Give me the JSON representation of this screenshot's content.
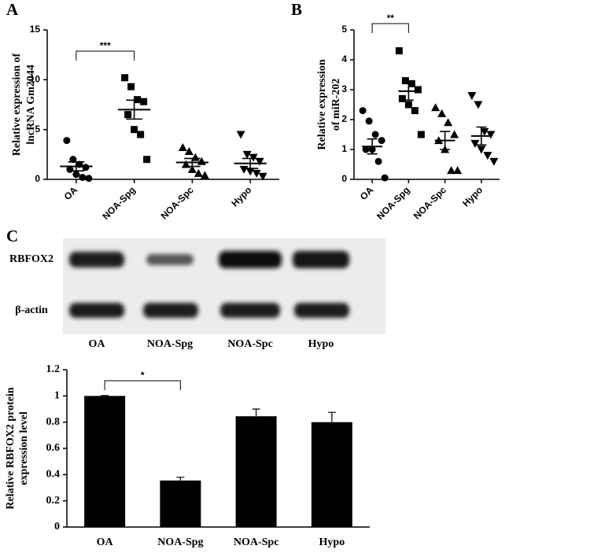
{
  "chart_data": [
    {
      "type": "dotplot",
      "panel": "A",
      "ylabel": [
        "Relative expression of",
        "lncRNA Gm2044"
      ],
      "groups": [
        {
          "name": "OA",
          "marker": "circle",
          "values": [
            3.9,
            2.0,
            1.5,
            1.2,
            1.0,
            0.5,
            0.2,
            0.1
          ],
          "mean": 1.3,
          "sem": 0.45
        },
        {
          "name": "NOA-Spg",
          "marker": "square",
          "values": [
            10.2,
            9.3,
            8.0,
            7.8,
            6.5,
            5.0,
            4.5,
            2.0
          ],
          "mean": 7.0,
          "sem": 0.95
        },
        {
          "name": "NOA-Spc",
          "marker": "triangle-up",
          "values": [
            3.2,
            2.8,
            2.2,
            1.8,
            1.5,
            1.0,
            0.6,
            0.4
          ],
          "mean": 1.7,
          "sem": 0.4
        },
        {
          "name": "Hypo",
          "marker": "triangle-down",
          "values": [
            4.5,
            2.5,
            2.2,
            1.8,
            1.0,
            0.8,
            0.6,
            0.3
          ],
          "mean": 1.6,
          "sem": 0.5
        }
      ],
      "ylim": [
        0,
        15
      ],
      "yticks": [
        0,
        5,
        10,
        15
      ],
      "annotation": "***",
      "color": "#000000"
    },
    {
      "type": "dotplot",
      "panel": "B",
      "ylabel": [
        "Relative expression",
        "of miR-202"
      ],
      "groups": [
        {
          "name": "OA",
          "marker": "circle",
          "values": [
            2.3,
            1.95,
            1.5,
            1.3,
            1.0,
            1.0,
            0.6,
            0.05
          ],
          "mean": 1.1,
          "sem": 0.25
        },
        {
          "name": "NOA-Spg",
          "marker": "square",
          "values": [
            4.3,
            3.3,
            3.2,
            3.0,
            2.7,
            2.5,
            2.3,
            1.5
          ],
          "mean": 2.95,
          "sem": 0.3
        },
        {
          "name": "NOA-Spc",
          "marker": "triangle-up",
          "values": [
            2.4,
            2.2,
            1.9,
            1.5,
            1.3,
            1.0,
            0.3,
            0.3
          ],
          "mean": 1.3,
          "sem": 0.3
        },
        {
          "name": "Hypo",
          "marker": "triangle-down",
          "values": [
            2.8,
            2.5,
            1.6,
            1.5,
            1.2,
            1.0,
            0.8,
            0.6
          ],
          "mean": 1.45,
          "sem": 0.3
        }
      ],
      "ylim": [
        0,
        5
      ],
      "yticks": [
        0,
        1,
        2,
        3,
        4,
        5
      ],
      "annotation": "**",
      "color": "#000000"
    },
    {
      "type": "bar",
      "ylabel": [
        "Relative RBFOX2 protein",
        "expression level"
      ],
      "categories": [
        "OA",
        "NOA-Spg",
        "NOA-Spc",
        "Hypo"
      ],
      "values": [
        1.0,
        0.355,
        0.845,
        0.8
      ],
      "errors": [
        0.003,
        0.025,
        0.055,
        0.075
      ],
      "ylim": [
        0,
        1.2
      ],
      "yticks": [
        0,
        0.2,
        0.4,
        0.6,
        0.8,
        1,
        1.2
      ],
      "annotation": "*",
      "color": "#000000"
    }
  ],
  "blot": {
    "panel": "C",
    "rows": [
      "RBFOX2",
      "β-actin"
    ],
    "lanes": [
      "OA",
      "NOA-Spg",
      "NOA-Spc",
      "Hypo"
    ]
  }
}
